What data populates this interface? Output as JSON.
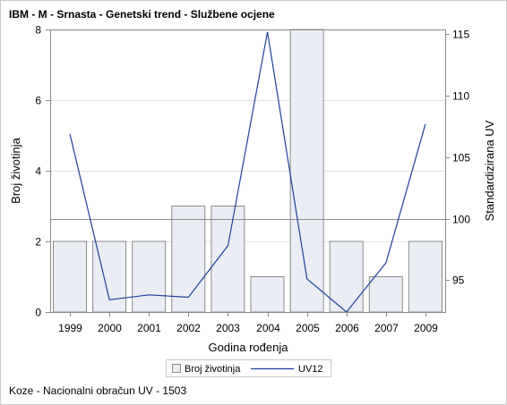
{
  "title": "IBM - M - Srnasta - Genetski trend - Službene ocjene",
  "footnote": "Koze - Nacionalni obračun UV - 1503",
  "chart_data": {
    "type": "bar",
    "categories": [
      "1999",
      "2000",
      "2001",
      "2002",
      "2003",
      "2004",
      "2005",
      "2006",
      "2007",
      "2009"
    ],
    "series": [
      {
        "name": "Broj životinja",
        "type": "bar",
        "axis": "left",
        "values": [
          2,
          2,
          2,
          3,
          3,
          1,
          8,
          2,
          1,
          2
        ]
      },
      {
        "name": "UV12",
        "type": "line",
        "axis": "right",
        "values": [
          106.9,
          93.4,
          93.8,
          93.6,
          97.8,
          115.2,
          95.1,
          92.4,
          96.4,
          107.7
        ]
      }
    ],
    "xlabel": "Godina rođenja",
    "ylabel": "Broj životinja",
    "y2label": "Standardizirana UV",
    "ylim": [
      0,
      8
    ],
    "yticks": [
      "0",
      "2",
      "4",
      "6",
      "8"
    ],
    "y2lim": [
      92.4,
      115.4
    ],
    "y2ticks": [
      "95",
      "100",
      "105",
      "110",
      "115"
    ],
    "reference_line_y2": 100,
    "grid": true,
    "legend_position": "bottom",
    "colors": {
      "bar_fill": "#eaeef4",
      "bar_stroke": "#8a8a8a",
      "line": "#1f3f9a",
      "axis": "#8a8a8a",
      "grid": "#e4e4e4",
      "refline": "#8a8a8a"
    }
  }
}
